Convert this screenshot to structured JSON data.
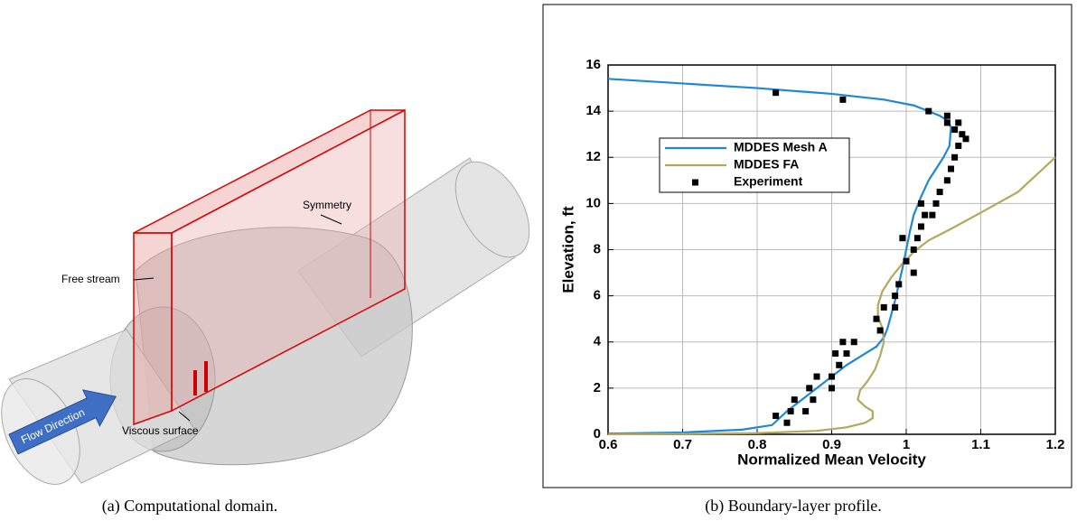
{
  "diagram": {
    "labels": {
      "symmetry": "Symmetry",
      "free_stream": "Free stream",
      "flow": "Flow Direction",
      "viscous": "Viscous surface"
    }
  },
  "captions": [
    "(a) Computational domain.",
    "(b) Boundary-layer profile."
  ],
  "chart_data": {
    "type": "line",
    "xlabel": "Normalized Mean Velocity",
    "ylabel": "Elevation, ft",
    "xlim": [
      0.6,
      1.2
    ],
    "xticks": [
      0.6,
      0.7,
      0.8,
      0.9,
      1,
      1.1,
      1.2
    ],
    "ylim": [
      0,
      16
    ],
    "yticks": [
      0,
      2,
      4,
      6,
      8,
      10,
      12,
      14,
      16
    ],
    "grid": true,
    "legend": "upper left",
    "series": [
      {
        "name": "MDDES Mesh A",
        "color": "#1e88d8",
        "mode": "line",
        "x": [
          0.6,
          0.7,
          0.8,
          0.9,
          0.97,
          1.01,
          1.03,
          1.045,
          1.055,
          1.06,
          1.058,
          1.05,
          1.04,
          1.03,
          1.02,
          1.01,
          1.005,
          1.0,
          0.995,
          0.99,
          0.985,
          0.98,
          0.975,
          0.97,
          0.96,
          0.94,
          0.92,
          0.9,
          0.88,
          0.86,
          0.84,
          0.82,
          0.78,
          0.7,
          0.6
        ],
        "values": [
          15.4,
          15.2,
          15.0,
          14.75,
          14.5,
          14.25,
          14.0,
          13.8,
          13.6,
          13.3,
          12.5,
          12.0,
          11.5,
          11.0,
          10.3,
          9.5,
          8.8,
          8.0,
          7.2,
          6.5,
          5.8,
          5.2,
          4.6,
          4.2,
          3.8,
          3.4,
          3.0,
          2.5,
          2.0,
          1.5,
          1.0,
          0.4,
          0.2,
          0.08,
          0.03
        ]
      },
      {
        "name": "MDDES FA",
        "color": "#b3a85c",
        "mode": "line",
        "x": [
          1.2,
          1.15,
          1.1,
          1.06,
          1.03,
          1.01,
          0.995,
          0.98,
          0.968,
          0.962,
          0.962,
          0.968,
          0.97,
          0.965,
          0.958,
          0.948,
          0.938,
          0.935,
          0.945,
          0.955,
          0.955,
          0.945,
          0.92,
          0.88,
          0.8,
          0.7,
          0.6
        ],
        "values": [
          12.0,
          10.5,
          9.6,
          8.9,
          8.4,
          7.9,
          7.4,
          6.8,
          6.2,
          5.6,
          5.1,
          4.6,
          4.0,
          3.4,
          2.8,
          2.3,
          1.9,
          1.5,
          1.2,
          1.0,
          0.7,
          0.5,
          0.3,
          0.15,
          0.05,
          0.02,
          0.0
        ]
      },
      {
        "name": "Experiment",
        "color": "#000000",
        "mode": "markers",
        "x": [
          0.825,
          0.915,
          1.03,
          1.055,
          1.055,
          1.07,
          1.065,
          1.075,
          1.08,
          1.07,
          1.065,
          1.06,
          1.055,
          1.045,
          1.04,
          1.035,
          1.02,
          1.025,
          1.02,
          1.015,
          0.995,
          1.01,
          1.0,
          1.01,
          0.99,
          0.985,
          0.985,
          0.97,
          0.96,
          0.965,
          0.93,
          0.915,
          0.92,
          0.905,
          0.91,
          0.9,
          0.88,
          0.9,
          0.87,
          0.875,
          0.85,
          0.865,
          0.845,
          0.825,
          0.84
        ],
        "values": [
          14.8,
          14.5,
          14.0,
          13.8,
          13.5,
          13.5,
          13.2,
          13.0,
          12.8,
          12.5,
          12.0,
          11.5,
          11.0,
          10.5,
          10.0,
          9.5,
          10.0,
          9.5,
          9.0,
          8.5,
          8.5,
          8.0,
          7.5,
          7.0,
          6.5,
          6.0,
          5.5,
          5.5,
          5.0,
          4.5,
          4.0,
          4.0,
          3.5,
          3.5,
          3.0,
          2.5,
          2.5,
          2.0,
          2.0,
          1.5,
          1.5,
          1.0,
          1.0,
          0.8,
          0.5
        ]
      }
    ]
  }
}
